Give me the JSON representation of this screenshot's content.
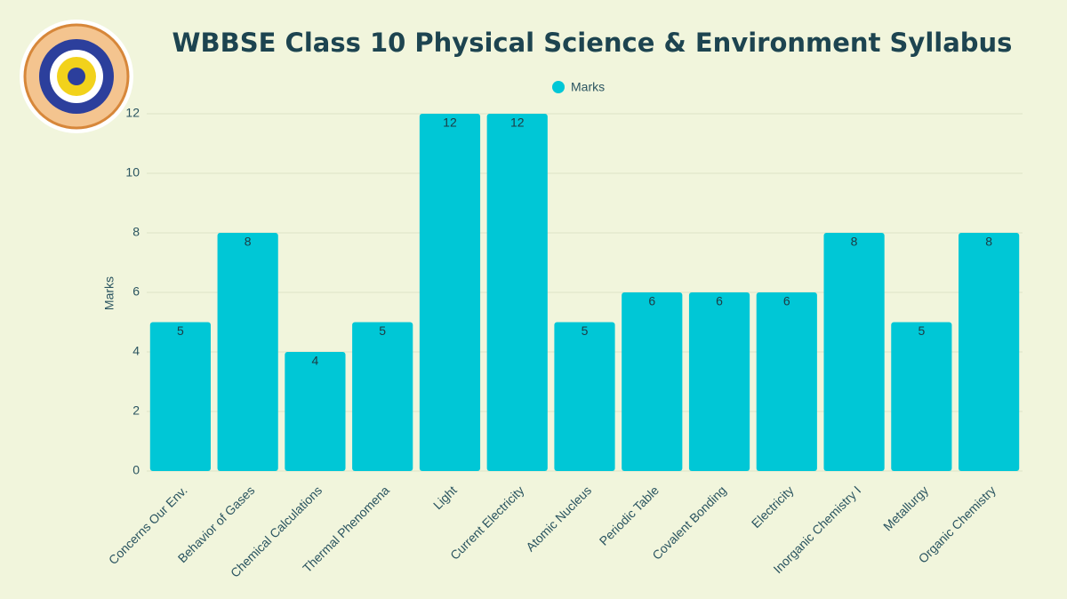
{
  "chart_data": {
    "type": "bar",
    "title": "WBBSE Class 10 Physical Science & Environment Syllabus",
    "y_label": "Marks",
    "categories": [
      "Concerns Our Env.",
      "Behavior of Gases",
      "Chemical Calculations",
      "Thermal Phenomena",
      "Light",
      "Current Electricity",
      "Atomic Nucleus",
      "Periodic Table",
      "Covalent Bonding",
      "Electricity",
      "Inorganic Chemistry I",
      "Metallurgy",
      "Organic Chemistry"
    ],
    "series": [
      {
        "name": "Marks",
        "color": "#00c7d6",
        "values": [
          5,
          8,
          4,
          5,
          12,
          12,
          5,
          6,
          6,
          6,
          8,
          5,
          8
        ]
      }
    ],
    "ylim": [
      0,
      12
    ],
    "yticks": [
      0,
      2,
      4,
      6,
      8,
      10,
      12
    ],
    "grid": true,
    "legend": "top"
  }
}
